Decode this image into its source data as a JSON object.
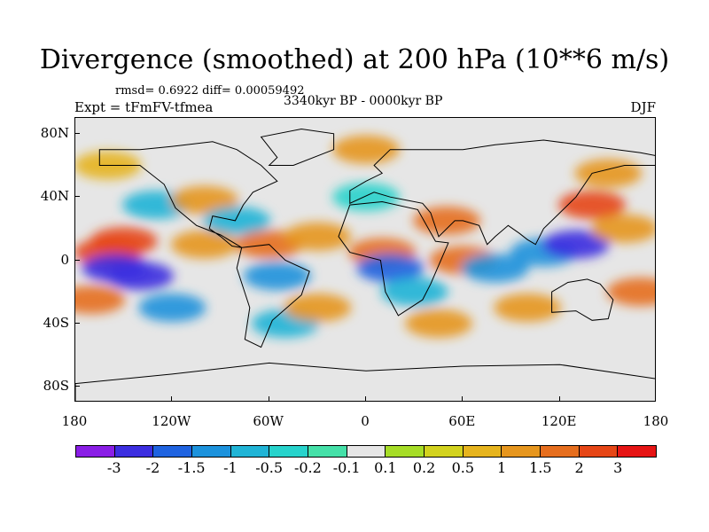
{
  "title": "Divergence (smoothed) at 200 hPa (10**6 m/s)",
  "stats": "rmsd= 0.6922 diff= 0.00059492",
  "subtitle_left": "Expt = tFmFV-tfmea",
  "subtitle_center": "3340kyr BP - 0000kyr BP",
  "subtitle_right": "DJF",
  "y_ticks": [
    "80N",
    "40N",
    "0",
    "40S",
    "80S"
  ],
  "x_ticks": [
    "180",
    "120W",
    "60W",
    "0",
    "60E",
    "120E",
    "180"
  ],
  "colorbar": {
    "colors": [
      "#8a1ee6",
      "#3c2ee0",
      "#1f63e0",
      "#1c92dc",
      "#20b4d6",
      "#27d3cc",
      "#45e0a8",
      "#e6e6e6",
      "#a6dd27",
      "#d2d21e",
      "#e6b41e",
      "#e6961e",
      "#e66e1e",
      "#e64616",
      "#e61414"
    ],
    "labels": [
      "-3",
      "-2",
      "-1.5",
      "-1",
      "-0.5",
      "-0.2",
      "-0.1",
      "0.1",
      "0.2",
      "0.5",
      "1",
      "1.5",
      "2",
      "3"
    ]
  },
  "map_data": {
    "lon_range": [
      -180,
      180
    ],
    "lat_range": [
      -90,
      90
    ],
    "background": "#e6e6e6",
    "anomalies": [
      {
        "lon": -150,
        "lat": 12,
        "value": 2.0
      },
      {
        "lon": -160,
        "lat": 5,
        "value": 2.5
      },
      {
        "lon": -100,
        "lat": 10,
        "value": 1.0
      },
      {
        "lon": -140,
        "lat": -10,
        "value": -3.0
      },
      {
        "lon": -155,
        "lat": -5,
        "value": -2.2
      },
      {
        "lon": -120,
        "lat": -30,
        "value": -1.5
      },
      {
        "lon": -170,
        "lat": -25,
        "value": 1.5
      },
      {
        "lon": -130,
        "lat": 35,
        "value": -1.0
      },
      {
        "lon": -100,
        "lat": 38,
        "value": 1.0
      },
      {
        "lon": -80,
        "lat": 25,
        "value": -1.0
      },
      {
        "lon": -60,
        "lat": 10,
        "value": 1.5
      },
      {
        "lon": -55,
        "lat": -10,
        "value": -1.2
      },
      {
        "lon": -50,
        "lat": -40,
        "value": -1.0
      },
      {
        "lon": -30,
        "lat": 15,
        "value": 1.0
      },
      {
        "lon": -30,
        "lat": -30,
        "value": 1.0
      },
      {
        "lon": 0,
        "lat": 40,
        "value": -0.5
      },
      {
        "lon": 10,
        "lat": 5,
        "value": 1.5
      },
      {
        "lon": 15,
        "lat": -5,
        "value": -2.0
      },
      {
        "lon": 30,
        "lat": -20,
        "value": -1.0
      },
      {
        "lon": 50,
        "lat": 25,
        "value": 1.5
      },
      {
        "lon": 60,
        "lat": 0,
        "value": 1.5
      },
      {
        "lon": 45,
        "lat": -40,
        "value": 1.0
      },
      {
        "lon": 80,
        "lat": -5,
        "value": -1.2
      },
      {
        "lon": 110,
        "lat": 5,
        "value": -1.5
      },
      {
        "lon": 130,
        "lat": 10,
        "value": -3.0
      },
      {
        "lon": 140,
        "lat": 35,
        "value": 2.0
      },
      {
        "lon": 160,
        "lat": 20,
        "value": 1.0
      },
      {
        "lon": 170,
        "lat": -20,
        "value": 1.5
      },
      {
        "lon": 100,
        "lat": -30,
        "value": 1.0
      },
      {
        "lon": 0,
        "lat": 70,
        "value": 1.0
      },
      {
        "lon": -160,
        "lat": 60,
        "value": 0.5
      },
      {
        "lon": 150,
        "lat": 55,
        "value": 1.0
      }
    ]
  },
  "continents": [
    "-165,70 -140,70 -120,72 -95,75 -80,70 -65,60 -55,50 -70,43 -76,35 -81,25 -95,28 -97,20 -90,15 -83,9 -77,8 -90,16 -105,22 -118,33 -125,48 -140,60 -165,60",
    "-77,8 -60,10 -50,0 -35,-7 -40,-22 -58,-38 -65,-55 -75,-50 -72,-30 -80,-5",
    "-17,15 -10,35 10,37 32,32 43,12 51,11 40,-15 35,-25 20,-35 12,-20 9,0 -10,5",
    "-10,36 -10,44 0,50 10,55 5,60 15,70 30,70 60,70 80,73 110,76 140,72 170,68 180,66 180,60 160,60 140,55 130,40 120,30 110,20 105,10 100,13 95,17 88,22 80,15 75,10 70,22 60,25 55,25 45,15 40,30 35,36 25,38 15,40 5,43",
    "115,-20 125,-14 137,-12 145,-15 153,-25 150,-37 140,-38 130,-32 115,-33",
    "-60,60 -45,60 -20,70 -20,80 -40,83 -65,78 -55,65",
    "-180,-78 -120,-72 -60,-65 0,-70 60,-67 120,-66 180,-75 180,-90 -180,-90"
  ]
}
